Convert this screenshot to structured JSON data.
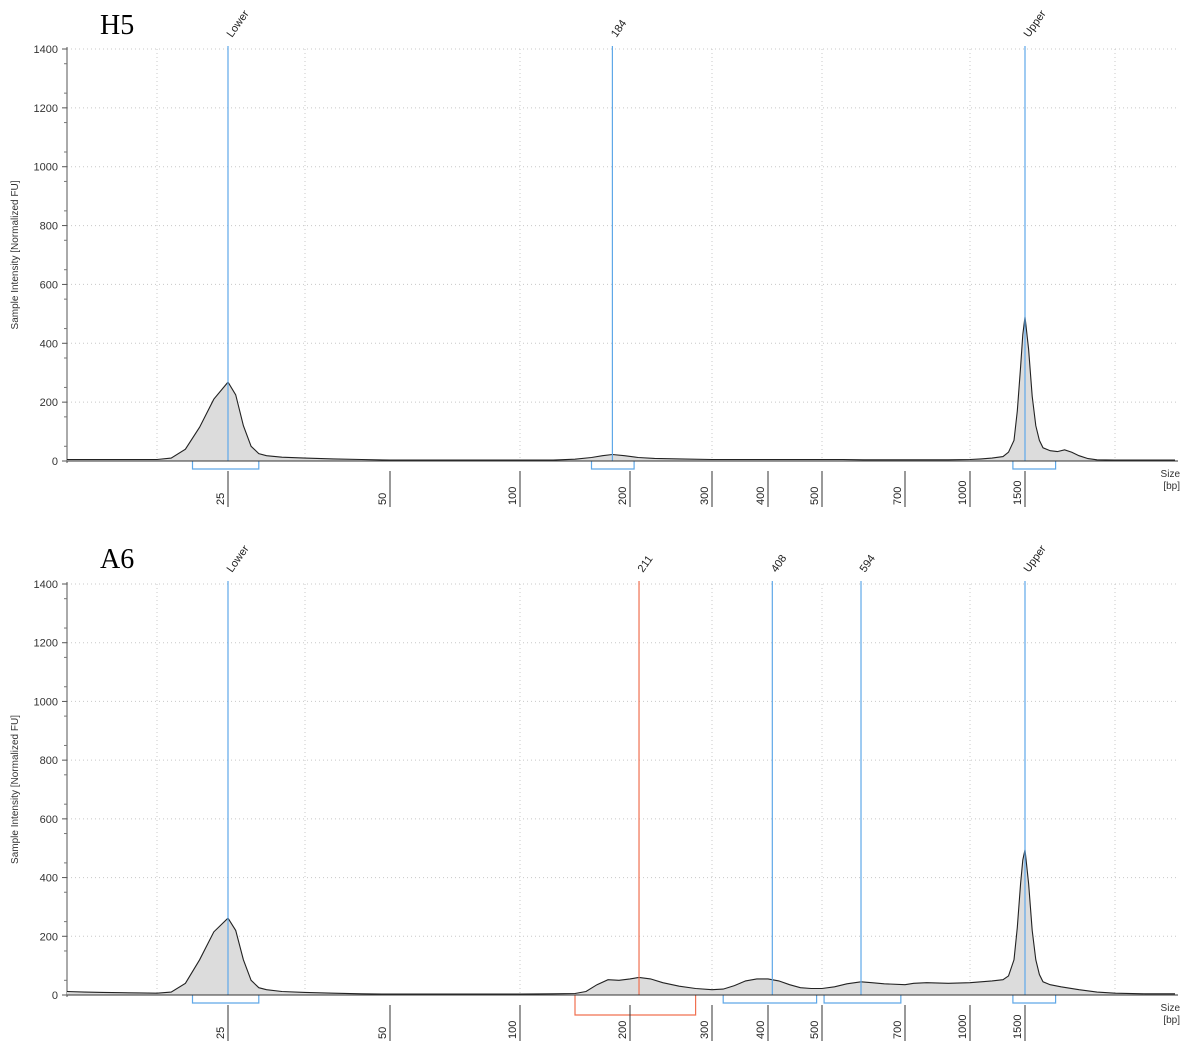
{
  "chart_data": [
    {
      "type": "area",
      "title": "H5",
      "ylabel": "Sample Intensity [Normalized FU]",
      "xlabel": "Size [bp]",
      "xlabel_lines": [
        "Size",
        "[bp]"
      ],
      "x_scale": "electrophoresis (non-linear)",
      "ylim": [
        0,
        1400
      ],
      "y_ticks": [
        0,
        200,
        400,
        600,
        800,
        1000,
        1200,
        1400
      ],
      "x_ticks": [
        25,
        50,
        100,
        200,
        300,
        400,
        500,
        700,
        1000,
        1500
      ],
      "grid": true,
      "trace": [
        [
          15,
          5
        ],
        [
          16,
          5
        ],
        [
          17,
          5
        ],
        [
          18,
          5
        ],
        [
          19,
          5
        ],
        [
          20,
          5
        ],
        [
          21,
          10
        ],
        [
          22,
          40
        ],
        [
          23,
          115
        ],
        [
          24,
          210
        ],
        [
          25,
          268
        ],
        [
          26,
          225
        ],
        [
          27,
          120
        ],
        [
          28,
          50
        ],
        [
          29,
          25
        ],
        [
          30,
          18
        ],
        [
          32,
          13
        ],
        [
          35,
          10
        ],
        [
          40,
          7
        ],
        [
          45,
          5
        ],
        [
          50,
          3
        ],
        [
          60,
          3
        ],
        [
          80,
          3
        ],
        [
          100,
          3
        ],
        [
          130,
          3
        ],
        [
          150,
          6
        ],
        [
          165,
          12
        ],
        [
          175,
          18
        ],
        [
          184,
          22
        ],
        [
          195,
          18
        ],
        [
          210,
          12
        ],
        [
          230,
          9
        ],
        [
          260,
          7
        ],
        [
          300,
          5
        ],
        [
          350,
          5
        ],
        [
          400,
          5
        ],
        [
          450,
          5
        ],
        [
          500,
          5
        ],
        [
          550,
          5
        ],
        [
          600,
          4
        ],
        [
          700,
          4
        ],
        [
          800,
          4
        ],
        [
          900,
          4
        ],
        [
          1000,
          5
        ],
        [
          1100,
          7
        ],
        [
          1200,
          10
        ],
        [
          1300,
          15
        ],
        [
          1350,
          30
        ],
        [
          1400,
          70
        ],
        [
          1430,
          170
        ],
        [
          1460,
          320
        ],
        [
          1480,
          430
        ],
        [
          1500,
          490
        ],
        [
          1520,
          380
        ],
        [
          1540,
          220
        ],
        [
          1560,
          120
        ],
        [
          1580,
          70
        ],
        [
          1600,
          45
        ],
        [
          1640,
          35
        ],
        [
          1680,
          32
        ],
        [
          1720,
          38
        ],
        [
          1760,
          30
        ],
        [
          1800,
          18
        ],
        [
          1850,
          8
        ],
        [
          1900,
          4
        ],
        [
          2000,
          3
        ],
        [
          2200,
          3
        ]
      ],
      "peaks": [
        {
          "label": "Lower",
          "x": 25,
          "color": "#5fa8e8",
          "bracket": [
            22.5,
            29
          ]
        },
        {
          "label": "184",
          "x": 184,
          "color": "#5fa8e8",
          "bracket": [
            165,
            205
          ]
        },
        {
          "label": "Upper",
          "x": 1500,
          "color": "#5fa8e8",
          "bracket": [
            1390,
            1670
          ]
        }
      ]
    },
    {
      "type": "area",
      "title": "A6",
      "ylabel": "Sample Intensity [Normalized FU]",
      "xlabel": "Size [bp]",
      "xlabel_lines": [
        "Size",
        "[bp]"
      ],
      "x_scale": "electrophoresis (non-linear)",
      "ylim": [
        0,
        1400
      ],
      "y_ticks": [
        0,
        200,
        400,
        600,
        800,
        1000,
        1200,
        1400
      ],
      "x_ticks": [
        25,
        50,
        100,
        200,
        300,
        400,
        500,
        700,
        1000,
        1500
      ],
      "grid": true,
      "trace": [
        [
          15,
          12
        ],
        [
          16,
          10
        ],
        [
          17,
          9
        ],
        [
          18,
          8
        ],
        [
          19,
          7
        ],
        [
          20,
          6
        ],
        [
          21,
          10
        ],
        [
          22,
          40
        ],
        [
          23,
          120
        ],
        [
          24,
          215
        ],
        [
          25,
          262
        ],
        [
          26,
          220
        ],
        [
          27,
          120
        ],
        [
          28,
          50
        ],
        [
          29,
          25
        ],
        [
          30,
          18
        ],
        [
          32,
          12
        ],
        [
          35,
          9
        ],
        [
          40,
          6
        ],
        [
          45,
          4
        ],
        [
          50,
          3
        ],
        [
          60,
          3
        ],
        [
          80,
          3
        ],
        [
          100,
          3
        ],
        [
          130,
          4
        ],
        [
          150,
          5
        ],
        [
          160,
          12
        ],
        [
          170,
          35
        ],
        [
          180,
          52
        ],
        [
          190,
          50
        ],
        [
          200,
          55
        ],
        [
          211,
          60
        ],
        [
          225,
          55
        ],
        [
          240,
          42
        ],
        [
          260,
          30
        ],
        [
          280,
          22
        ],
        [
          300,
          18
        ],
        [
          320,
          20
        ],
        [
          340,
          32
        ],
        [
          360,
          48
        ],
        [
          380,
          55
        ],
        [
          400,
          55
        ],
        [
          420,
          48
        ],
        [
          440,
          35
        ],
        [
          460,
          25
        ],
        [
          480,
          22
        ],
        [
          500,
          22
        ],
        [
          530,
          28
        ],
        [
          560,
          38
        ],
        [
          594,
          45
        ],
        [
          620,
          42
        ],
        [
          650,
          38
        ],
        [
          700,
          35
        ],
        [
          740,
          40
        ],
        [
          800,
          42
        ],
        [
          900,
          40
        ],
        [
          1000,
          42
        ],
        [
          1100,
          45
        ],
        [
          1200,
          48
        ],
        [
          1300,
          52
        ],
        [
          1350,
          65
        ],
        [
          1400,
          120
        ],
        [
          1430,
          230
        ],
        [
          1460,
          380
        ],
        [
          1480,
          460
        ],
        [
          1500,
          495
        ],
        [
          1520,
          380
        ],
        [
          1540,
          220
        ],
        [
          1560,
          120
        ],
        [
          1580,
          70
        ],
        [
          1600,
          45
        ],
        [
          1640,
          35
        ],
        [
          1700,
          28
        ],
        [
          1800,
          18
        ],
        [
          1900,
          10
        ],
        [
          2000,
          6
        ],
        [
          2100,
          4
        ],
        [
          2200,
          4
        ]
      ],
      "peaks": [
        {
          "label": "Lower",
          "x": 25,
          "color": "#5fa8e8",
          "bracket": [
            22.5,
            29
          ]
        },
        {
          "label": "211",
          "x": 211,
          "color": "#f07050",
          "bracket": [
            150,
            280
          ]
        },
        {
          "label": "408",
          "x": 408,
          "color": "#5fa8e8",
          "bracket": [
            320,
            490
          ]
        },
        {
          "label": "594",
          "x": 594,
          "color": "#5fa8e8",
          "bracket": [
            505,
            690
          ]
        },
        {
          "label": "Upper",
          "x": 1500,
          "color": "#5fa8e8",
          "bracket": [
            1390,
            1670
          ]
        }
      ]
    }
  ]
}
